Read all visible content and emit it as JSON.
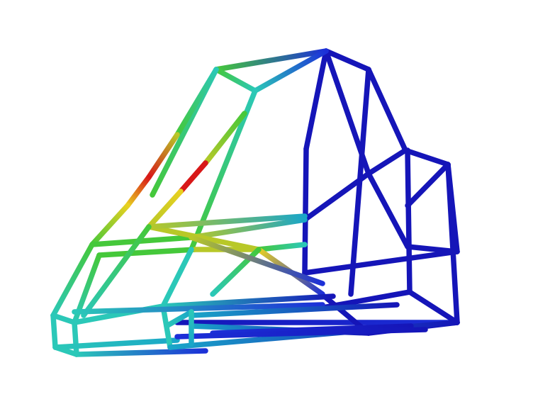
{
  "scene": {
    "subject": "tubular-frame-stress-plot",
    "background": "#ffffff",
    "colormap": {
      "name": "jet",
      "stops": [
        "#1515b8",
        "#1c2fd8",
        "#1aa6c8",
        "#2bc8b8",
        "#45c83a",
        "#b8c828",
        "#e8d020",
        "#d81818"
      ]
    },
    "tube_width_units": 7.5
  }
}
